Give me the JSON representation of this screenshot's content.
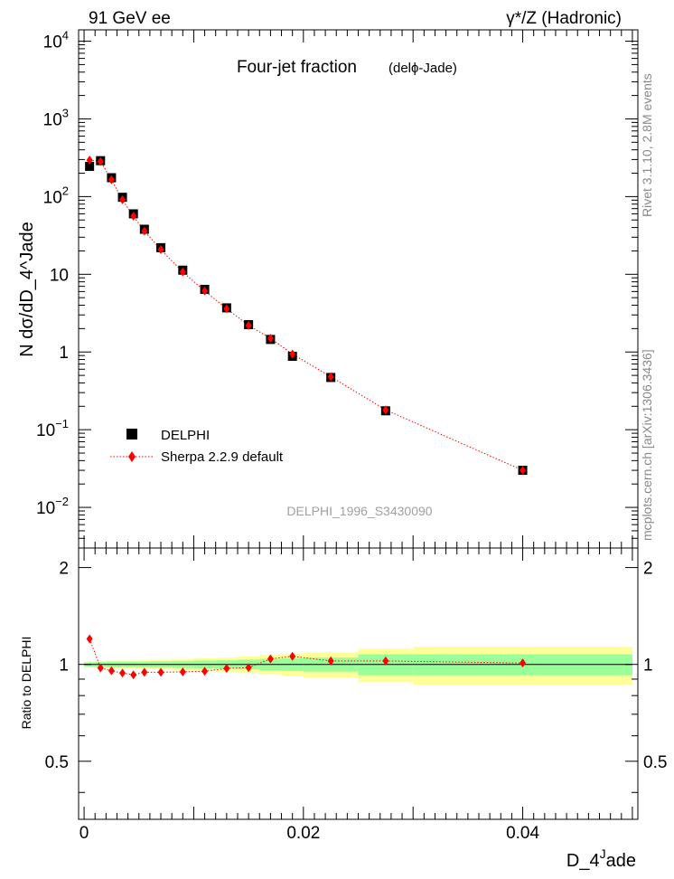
{
  "header": {
    "left": "91 GeV ee",
    "right": "γ*/Z (Hadronic)"
  },
  "side_labels": {
    "rivet": "Rivet 3.1.10, 2.8M events",
    "mcplots": "mcplots.cern.ch [arXiv:1306.3436]"
  },
  "chart_data": [
    {
      "type": "scatter",
      "title": "Four-jet fraction",
      "subtitle": "(delϕ-Jade)",
      "ylabel": "N dσ/dD_4^Jade",
      "analysis_id": "DELPHI_1996_S3430090",
      "log_y": true,
      "xlim": [
        -0.0005,
        0.0505
      ],
      "ylim": [
        0.003,
        14000
      ],
      "y_ticks": [
        {
          "value": 0.01,
          "base": "10",
          "exp": "−2"
        },
        {
          "value": 0.1,
          "base": "10",
          "exp": "−1"
        },
        {
          "value": 1,
          "base": "1",
          "exp": ""
        },
        {
          "value": 10,
          "base": "10",
          "exp": ""
        },
        {
          "value": 100,
          "base": "10",
          "exp": "2"
        },
        {
          "value": 1000,
          "base": "10",
          "exp": "3"
        },
        {
          "value": 10000,
          "base": "10",
          "exp": "4"
        }
      ],
      "legend_position": "bottom-left",
      "series": [
        {
          "name": "DELPHI",
          "color": "#000000",
          "marker": "square",
          "x": [
            0.0005,
            0.0015,
            0.0025,
            0.0035,
            0.0045,
            0.0055,
            0.007,
            0.009,
            0.011,
            0.013,
            0.015,
            0.017,
            0.019,
            0.0225,
            0.0275,
            0.04
          ],
          "y": [
            245,
            290,
            175,
            98,
            60,
            38,
            22,
            11.3,
            6.4,
            3.7,
            2.25,
            1.45,
            0.88,
            0.47,
            0.175,
            0.03
          ]
        },
        {
          "name": "Sherpa 2.2.9 default",
          "color": "#ff0000",
          "marker": "diamond",
          "line": "dotted",
          "x": [
            0.0005,
            0.0015,
            0.0025,
            0.0035,
            0.0045,
            0.0055,
            0.007,
            0.009,
            0.011,
            0.013,
            0.015,
            0.017,
            0.019,
            0.0225,
            0.0275,
            0.04
          ],
          "y": [
            295,
            283,
            165,
            91,
            56,
            36,
            20.8,
            10.7,
            6.1,
            3.6,
            2.2,
            1.5,
            0.94,
            0.48,
            0.18,
            0.03
          ]
        }
      ]
    },
    {
      "type": "scatter",
      "ylabel": "Ratio to DELPHI",
      "xlabel": "D_4^Jade",
      "xlim": [
        -0.0005,
        0.0505
      ],
      "ylim": [
        0.33,
        2.3
      ],
      "x_ticks": [
        "0",
        "0.02",
        "0.04"
      ],
      "x_tick_values": [
        0,
        0.02,
        0.04
      ],
      "y_ticks": [
        "0.5",
        "1",
        "2"
      ],
      "y_tick_values": [
        0.5,
        1,
        2
      ],
      "bands": {
        "edges": [
          0.0,
          0.001,
          0.002,
          0.003,
          0.004,
          0.005,
          0.006,
          0.008,
          0.01,
          0.012,
          0.014,
          0.016,
          0.018,
          0.02,
          0.025,
          0.03,
          0.05
        ],
        "inner_color": "#99ff99",
        "outer_color": "#ffff99",
        "inner_halfwidth": [
          0.015,
          0.018,
          0.02,
          0.02,
          0.02,
          0.02,
          0.022,
          0.025,
          0.028,
          0.03,
          0.035,
          0.04,
          0.045,
          0.05,
          0.075,
          0.075
        ],
        "outer_halfwidth": [
          0.022,
          0.025,
          0.028,
          0.028,
          0.028,
          0.03,
          0.035,
          0.04,
          0.045,
          0.05,
          0.06,
          0.07,
          0.08,
          0.09,
          0.12,
          0.135
        ]
      },
      "series": [
        {
          "name": "Sherpa 2.2.9 default",
          "color": "#ff0000",
          "marker": "diamond",
          "line": "dotted",
          "x": [
            0.0005,
            0.0015,
            0.0025,
            0.0035,
            0.0045,
            0.0055,
            0.007,
            0.009,
            0.011,
            0.013,
            0.015,
            0.017,
            0.019,
            0.0225,
            0.0275,
            0.04
          ],
          "y": [
            1.2,
            0.975,
            0.955,
            0.94,
            0.928,
            0.945,
            0.945,
            0.948,
            0.952,
            0.972,
            0.977,
            1.04,
            1.06,
            1.025,
            1.025,
            1.01
          ]
        }
      ]
    }
  ]
}
